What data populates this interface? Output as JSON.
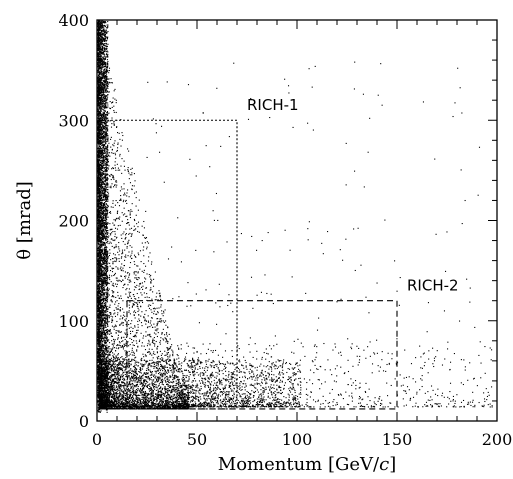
{
  "chart_data": {
    "type": "scatter",
    "title": "",
    "xlabel_main": "Momentum [GeV/",
    "xlabel_unit_italic": "c",
    "xlabel_close": "]",
    "ylabel": "θ [mrad]",
    "xlim": [
      0,
      200
    ],
    "ylim": [
      0,
      400
    ],
    "grid": false,
    "legend": "none",
    "x_ticks": [
      0,
      50,
      100,
      150,
      200
    ],
    "x_tick_labels": [
      "0",
      "50",
      "100",
      "150",
      "200"
    ],
    "y_ticks": [
      0,
      100,
      200,
      300,
      400
    ],
    "y_tick_labels": [
      "0",
      "100",
      "200",
      "300",
      "400"
    ],
    "point_color": "#000000",
    "distribution_note": "Dense band near low momentum (0–5 GeV/c) across all angles and a dense low-angle band (15–60 mrad); sparse points elsewhere, density falling with momentum and angle.",
    "regions": [
      {
        "name": "RICH-1",
        "label": "RICH-1",
        "x_range": [
          1,
          70
        ],
        "y_range": [
          12,
          300
        ],
        "style": "dotted",
        "label_at": [
          75,
          310
        ]
      },
      {
        "name": "RICH-2",
        "label": "RICH-2",
        "x_range": [
          15,
          150
        ],
        "y_range": [
          12,
          120
        ],
        "style": "dashed",
        "label_at": [
          155,
          130
        ]
      }
    ]
  }
}
